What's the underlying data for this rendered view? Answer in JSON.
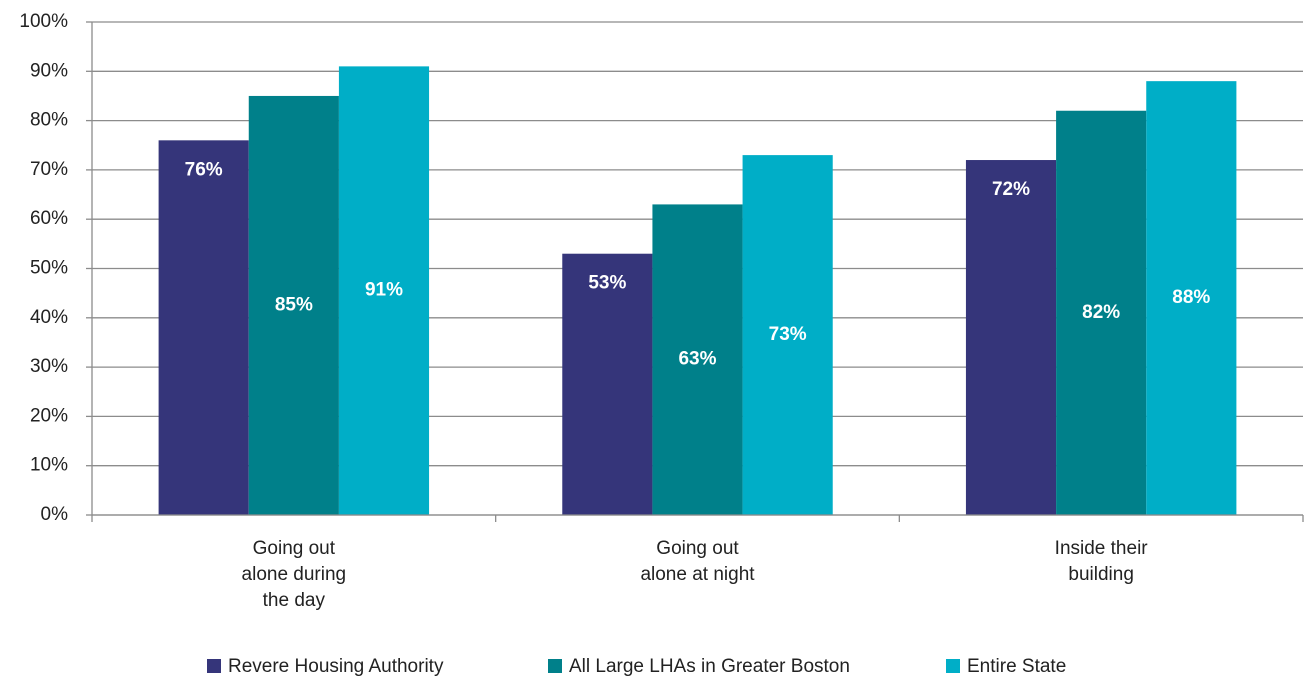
{
  "chart_data": {
    "type": "bar",
    "categories": [
      "Going out\nalone during\nthe day",
      "Going out\nalone at night",
      "Inside their\nbuilding"
    ],
    "series": [
      {
        "name": "Revere Housing Authority",
        "color": "#35357a",
        "values": [
          76,
          53,
          72
        ],
        "value_labels": [
          "76%",
          "53%",
          "72%"
        ]
      },
      {
        "name": "All Large LHAs in Greater Boston",
        "color": "#00808a",
        "values": [
          85,
          63,
          82
        ],
        "value_labels": [
          "85%",
          "63%",
          "82%"
        ]
      },
      {
        "name": "Entire State",
        "color": "#00aec7",
        "values": [
          91,
          73,
          88
        ],
        "value_labels": [
          "91%",
          "73%",
          "88%"
        ]
      }
    ],
    "ylim": [
      0,
      100
    ],
    "yticks": [
      {
        "value": 0,
        "label": "0%"
      },
      {
        "value": 10,
        "label": "10%"
      },
      {
        "value": 20,
        "label": "20%"
      },
      {
        "value": 30,
        "label": "30%"
      },
      {
        "value": 40,
        "label": "40%"
      },
      {
        "value": 50,
        "label": "50%"
      },
      {
        "value": 60,
        "label": "60%"
      },
      {
        "value": 70,
        "label": "70%"
      },
      {
        "value": 80,
        "label": "80%"
      },
      {
        "value": 90,
        "label": "90%"
      },
      {
        "value": 100,
        "label": "100%"
      }
    ],
    "grid": true,
    "legend": "bottom"
  }
}
